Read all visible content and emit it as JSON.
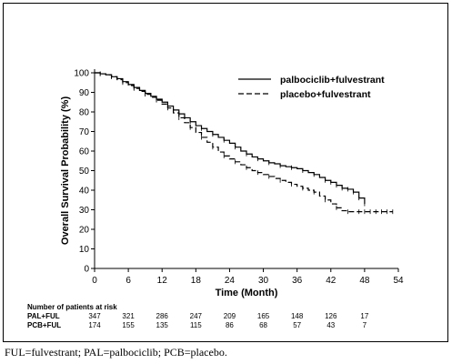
{
  "chart_data": {
    "type": "line",
    "xlabel": "Time (Month)",
    "ylabel": "Overall Survival Probability (%)",
    "xlim": [
      0,
      54
    ],
    "ylim": [
      0,
      100
    ],
    "xticks": [
      0,
      6,
      12,
      18,
      24,
      30,
      36,
      42,
      48,
      54
    ],
    "yticks": [
      0,
      10,
      20,
      30,
      40,
      50,
      60,
      70,
      80,
      90,
      100
    ],
    "legend_position": "top-right",
    "series": [
      {
        "name": "palbociclib+fulvestrant",
        "style": "solid",
        "x": [
          0,
          1,
          2,
          3,
          4,
          5,
          6,
          7,
          8,
          9,
          10,
          11,
          12,
          13,
          14,
          15,
          16,
          17,
          18,
          19,
          20,
          21,
          22,
          23,
          24,
          25,
          26,
          27,
          28,
          29,
          30,
          31,
          32,
          33,
          34,
          35,
          36,
          37,
          38,
          39,
          40,
          41,
          42,
          43,
          44,
          45,
          46,
          47,
          48
        ],
        "y": [
          100,
          99.5,
          99,
          98,
          97,
          95.5,
          94,
          92.5,
          91,
          89.5,
          88,
          86.5,
          85,
          83,
          81,
          79,
          77,
          75,
          73,
          71.5,
          70,
          68.5,
          67,
          65.5,
          64,
          62,
          60,
          58.5,
          57,
          56,
          55,
          54,
          53.5,
          52.5,
          52,
          51.5,
          51,
          50,
          49,
          48,
          46.5,
          45,
          44,
          42.5,
          41,
          40.5,
          39,
          36,
          33
        ]
      },
      {
        "name": "placebo+fulvestrant",
        "style": "dashed",
        "x": [
          0,
          1,
          2,
          3,
          4,
          5,
          6,
          7,
          8,
          9,
          10,
          11,
          12,
          13,
          14,
          15,
          16,
          17,
          18,
          19,
          20,
          21,
          22,
          23,
          24,
          25,
          26,
          27,
          28,
          29,
          30,
          31,
          32,
          33,
          34,
          35,
          36,
          37,
          38,
          39,
          40,
          41,
          42,
          43,
          44,
          45,
          46,
          47,
          48,
          49,
          50,
          51,
          52,
          53
        ],
        "y": [
          100,
          99.5,
          99,
          98,
          96.5,
          95,
          93.5,
          92,
          90.5,
          89,
          87.5,
          86,
          84,
          82,
          79.5,
          77,
          74.5,
          72,
          69.5,
          67,
          64.5,
          62,
          59.5,
          57.5,
          56,
          54.5,
          53,
          51.5,
          50,
          49,
          48,
          47,
          46,
          45,
          44,
          43,
          42,
          41,
          40,
          39,
          37,
          35,
          33,
          31,
          29.5,
          29,
          29,
          29,
          29,
          29,
          29,
          29,
          29,
          29
        ]
      }
    ],
    "risk_table": {
      "title": "Number of patients at risk",
      "rows": [
        {
          "label": "PAL+FUL",
          "values": [
            "347",
            "321",
            "286",
            "247",
            "209",
            "165",
            "148",
            "126",
            "17"
          ]
        },
        {
          "label": "PCB+FUL",
          "values": [
            "174",
            "155",
            "135",
            "115",
            "86",
            "68",
            "57",
            "43",
            "7"
          ]
        }
      ]
    }
  },
  "footnote": "FUL=fulvestrant; PAL=palbociclib; PCB=placebo."
}
